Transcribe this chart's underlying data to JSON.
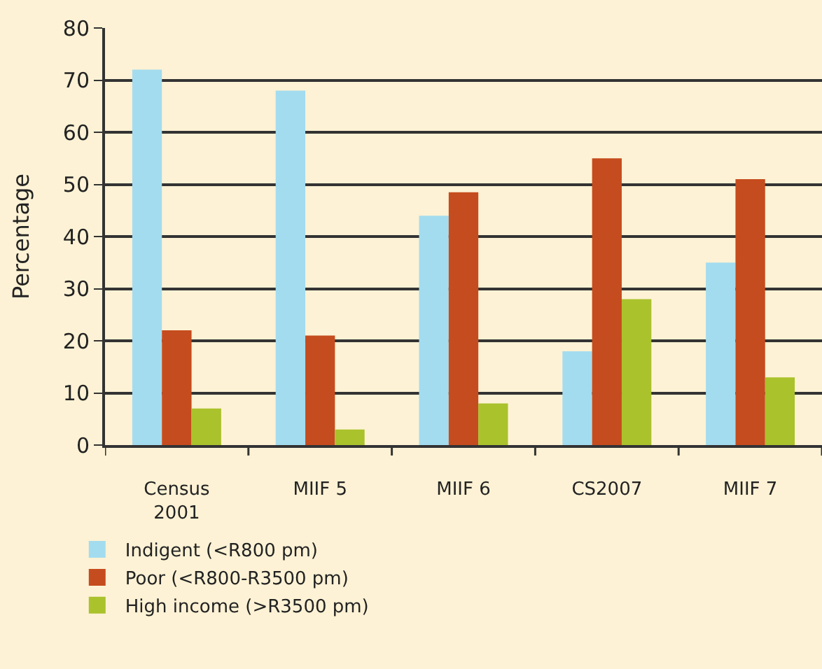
{
  "chart_data": {
    "type": "bar",
    "ylabel": "Percentage",
    "categories": [
      "Census\n2001",
      "MIIF 5",
      "MIIF 6",
      "CS2007",
      "MIIF 7"
    ],
    "series": [
      {
        "name": "Indigent (<R800 pm)",
        "color": "#a3dcef",
        "values": [
          72,
          68,
          44,
          18,
          35
        ]
      },
      {
        "name": "Poor (<R800-R3500 pm)",
        "color": "#c54c1e",
        "values": [
          22,
          21,
          48.5,
          55,
          51
        ]
      },
      {
        "name": "High income (>R3500 pm)",
        "color": "#aac22c",
        "values": [
          7,
          3,
          8,
          28,
          13
        ]
      }
    ],
    "ylim": [
      0,
      80
    ],
    "yticks": [
      0,
      10,
      20,
      30,
      40,
      50,
      60,
      70,
      80
    ],
    "grid": "y",
    "legend": "bottom left"
  }
}
